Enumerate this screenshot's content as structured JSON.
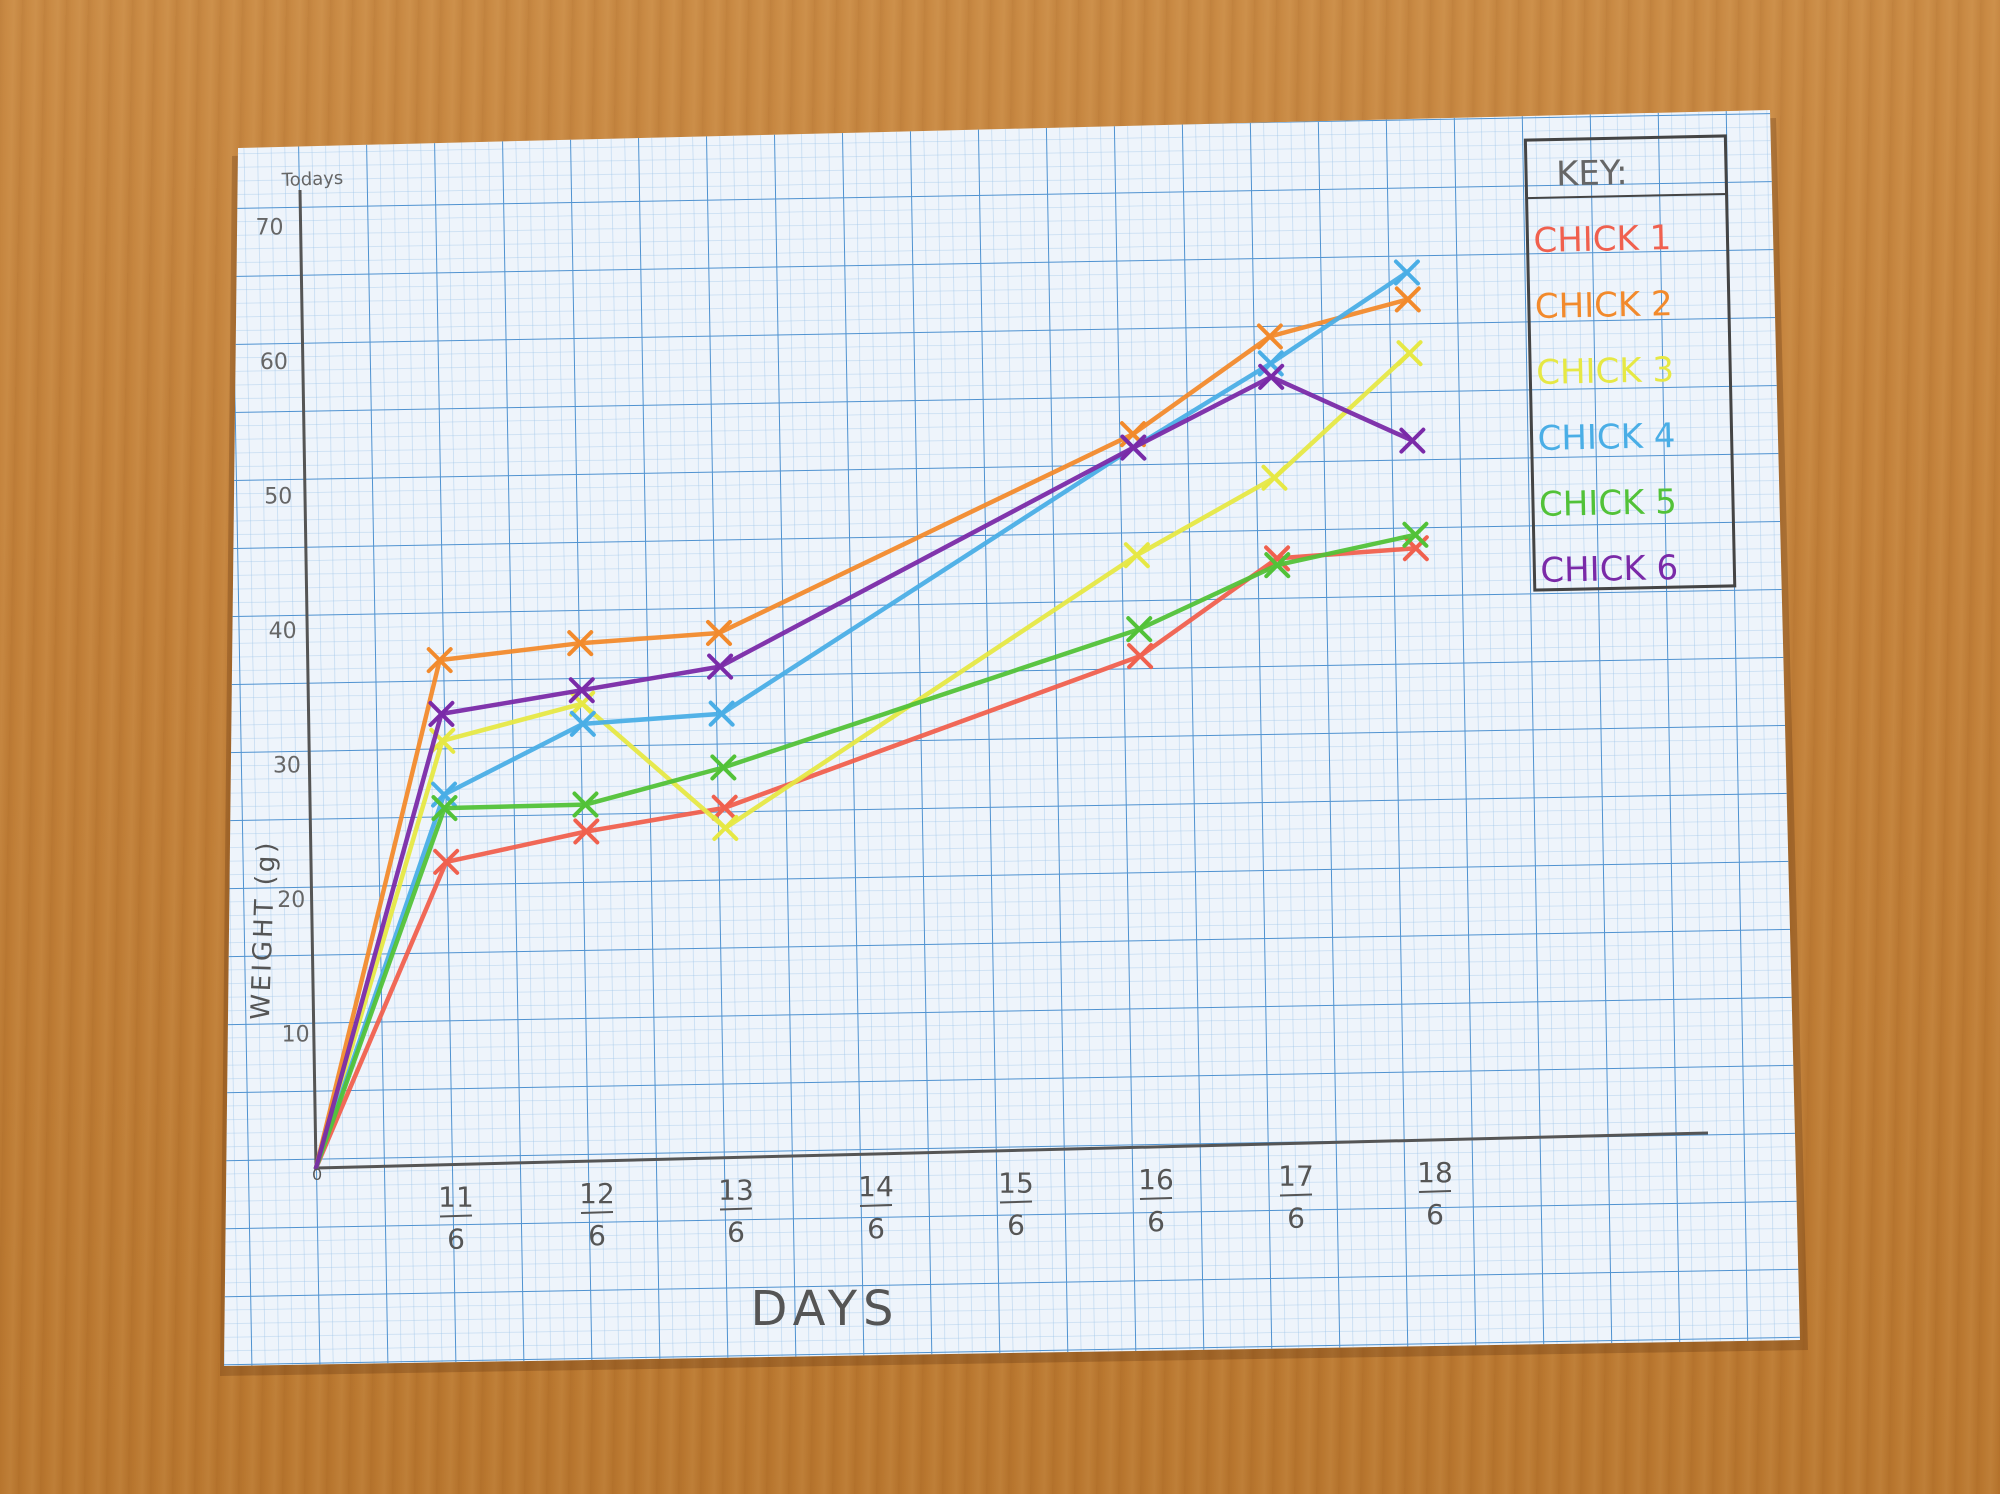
{
  "chart_data": {
    "type": "line",
    "title": "",
    "xlabel": "DAYS",
    "ylabel": "WEIGHT (g)",
    "corner_note": "Todays",
    "ylim": [
      0,
      70
    ],
    "y_ticks": [
      "0",
      "10",
      "20",
      "30",
      "40",
      "50",
      "60",
      "70"
    ],
    "x_ticks": [
      {
        "num": "11",
        "den": "6"
      },
      {
        "num": "12",
        "den": "6"
      },
      {
        "num": "13",
        "den": "6"
      },
      {
        "num": "14",
        "den": "6"
      },
      {
        "num": "15",
        "den": "6"
      },
      {
        "num": "16",
        "den": "6"
      },
      {
        "num": "17",
        "den": "6"
      },
      {
        "num": "18",
        "den": "6"
      }
    ],
    "x_origin_label": "0",
    "legend_title": "KEY:",
    "legend_position": "top-right",
    "grid": true,
    "series": [
      {
        "name": "CHICK 1",
        "color": "#f0604e",
        "points": [
          [
            0,
            0
          ],
          [
            11,
            22.5
          ],
          [
            12,
            24.5
          ],
          [
            13,
            26
          ],
          [
            16,
            36.5
          ],
          [
            17,
            43.5
          ],
          [
            18,
            44
          ]
        ]
      },
      {
        "name": "CHICK 2",
        "color": "#f28a2c",
        "points": [
          [
            0,
            0
          ],
          [
            11,
            37.5
          ],
          [
            12,
            38.5
          ],
          [
            13,
            39
          ],
          [
            16,
            53
          ],
          [
            17,
            60
          ],
          [
            18,
            62.5
          ]
        ]
      },
      {
        "name": "CHICK 3",
        "color": "#e6e844",
        "points": [
          [
            0,
            0
          ],
          [
            11,
            31.5
          ],
          [
            12,
            34
          ],
          [
            13,
            24.5
          ],
          [
            16,
            44
          ],
          [
            17,
            49.5
          ],
          [
            18,
            58.5
          ]
        ]
      },
      {
        "name": "CHICK 4",
        "color": "#4aaee6",
        "points": [
          [
            0,
            0
          ],
          [
            11,
            27.5
          ],
          [
            12,
            32.5
          ],
          [
            13,
            33
          ],
          [
            16,
            52
          ],
          [
            17,
            58
          ],
          [
            18,
            64.5
          ]
        ]
      },
      {
        "name": "CHICK 5",
        "color": "#52c238",
        "points": [
          [
            0,
            0
          ],
          [
            11,
            26.5
          ],
          [
            12,
            26.5
          ],
          [
            13,
            29
          ],
          [
            16,
            38.5
          ],
          [
            17,
            43
          ],
          [
            18,
            45
          ]
        ]
      },
      {
        "name": "CHICK 6",
        "color": "#7a2aa8",
        "points": [
          [
            0,
            0
          ],
          [
            11,
            33.5
          ],
          [
            12,
            35
          ],
          [
            13,
            36.5
          ],
          [
            16,
            52
          ],
          [
            17,
            57
          ],
          [
            18,
            52
          ]
        ]
      }
    ]
  }
}
